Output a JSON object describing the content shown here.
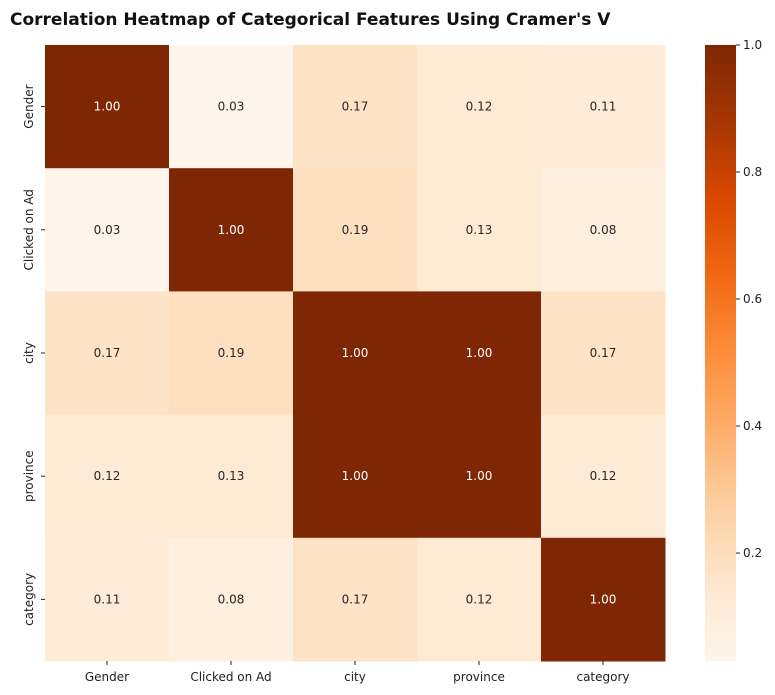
{
  "chart_data": {
    "type": "heatmap",
    "title": "Correlation Heatmap of Categorical Features Using Cramer's V",
    "rows": [
      "Gender",
      "Clicked on Ad",
      "city",
      "province",
      "category"
    ],
    "columns": [
      "Gender",
      "Clicked on Ad",
      "city",
      "province",
      "category"
    ],
    "values": [
      [
        1.0,
        0.03,
        0.17,
        0.12,
        0.11
      ],
      [
        0.03,
        1.0,
        0.19,
        0.13,
        0.08
      ],
      [
        0.17,
        0.19,
        1.0,
        1.0,
        0.17
      ],
      [
        0.12,
        0.13,
        1.0,
        1.0,
        0.12
      ],
      [
        0.11,
        0.08,
        0.17,
        0.12,
        1.0
      ]
    ],
    "value_labels": [
      [
        "1.00",
        "0.03",
        "0.17",
        "0.12",
        "0.11"
      ],
      [
        "0.03",
        "1.00",
        "0.19",
        "0.13",
        "0.08"
      ],
      [
        "0.17",
        "0.19",
        "1.00",
        "1.00",
        "0.17"
      ],
      [
        "0.12",
        "0.13",
        "1.00",
        "1.00",
        "0.12"
      ],
      [
        "0.11",
        "0.08",
        "0.17",
        "0.12",
        "1.00"
      ]
    ],
    "colormap": "Oranges",
    "colorbar": {
      "range": [
        0.03,
        1.0
      ],
      "ticks": [
        0.2,
        0.4,
        0.6,
        0.8,
        1.0
      ],
      "tick_labels": [
        "0.2",
        "0.4",
        "0.6",
        "0.8",
        "1.0"
      ]
    },
    "colors": {
      "low": "#fff5eb",
      "high": "#7f2704",
      "label_dark": "#262626",
      "label_light": "#ffffff"
    }
  }
}
